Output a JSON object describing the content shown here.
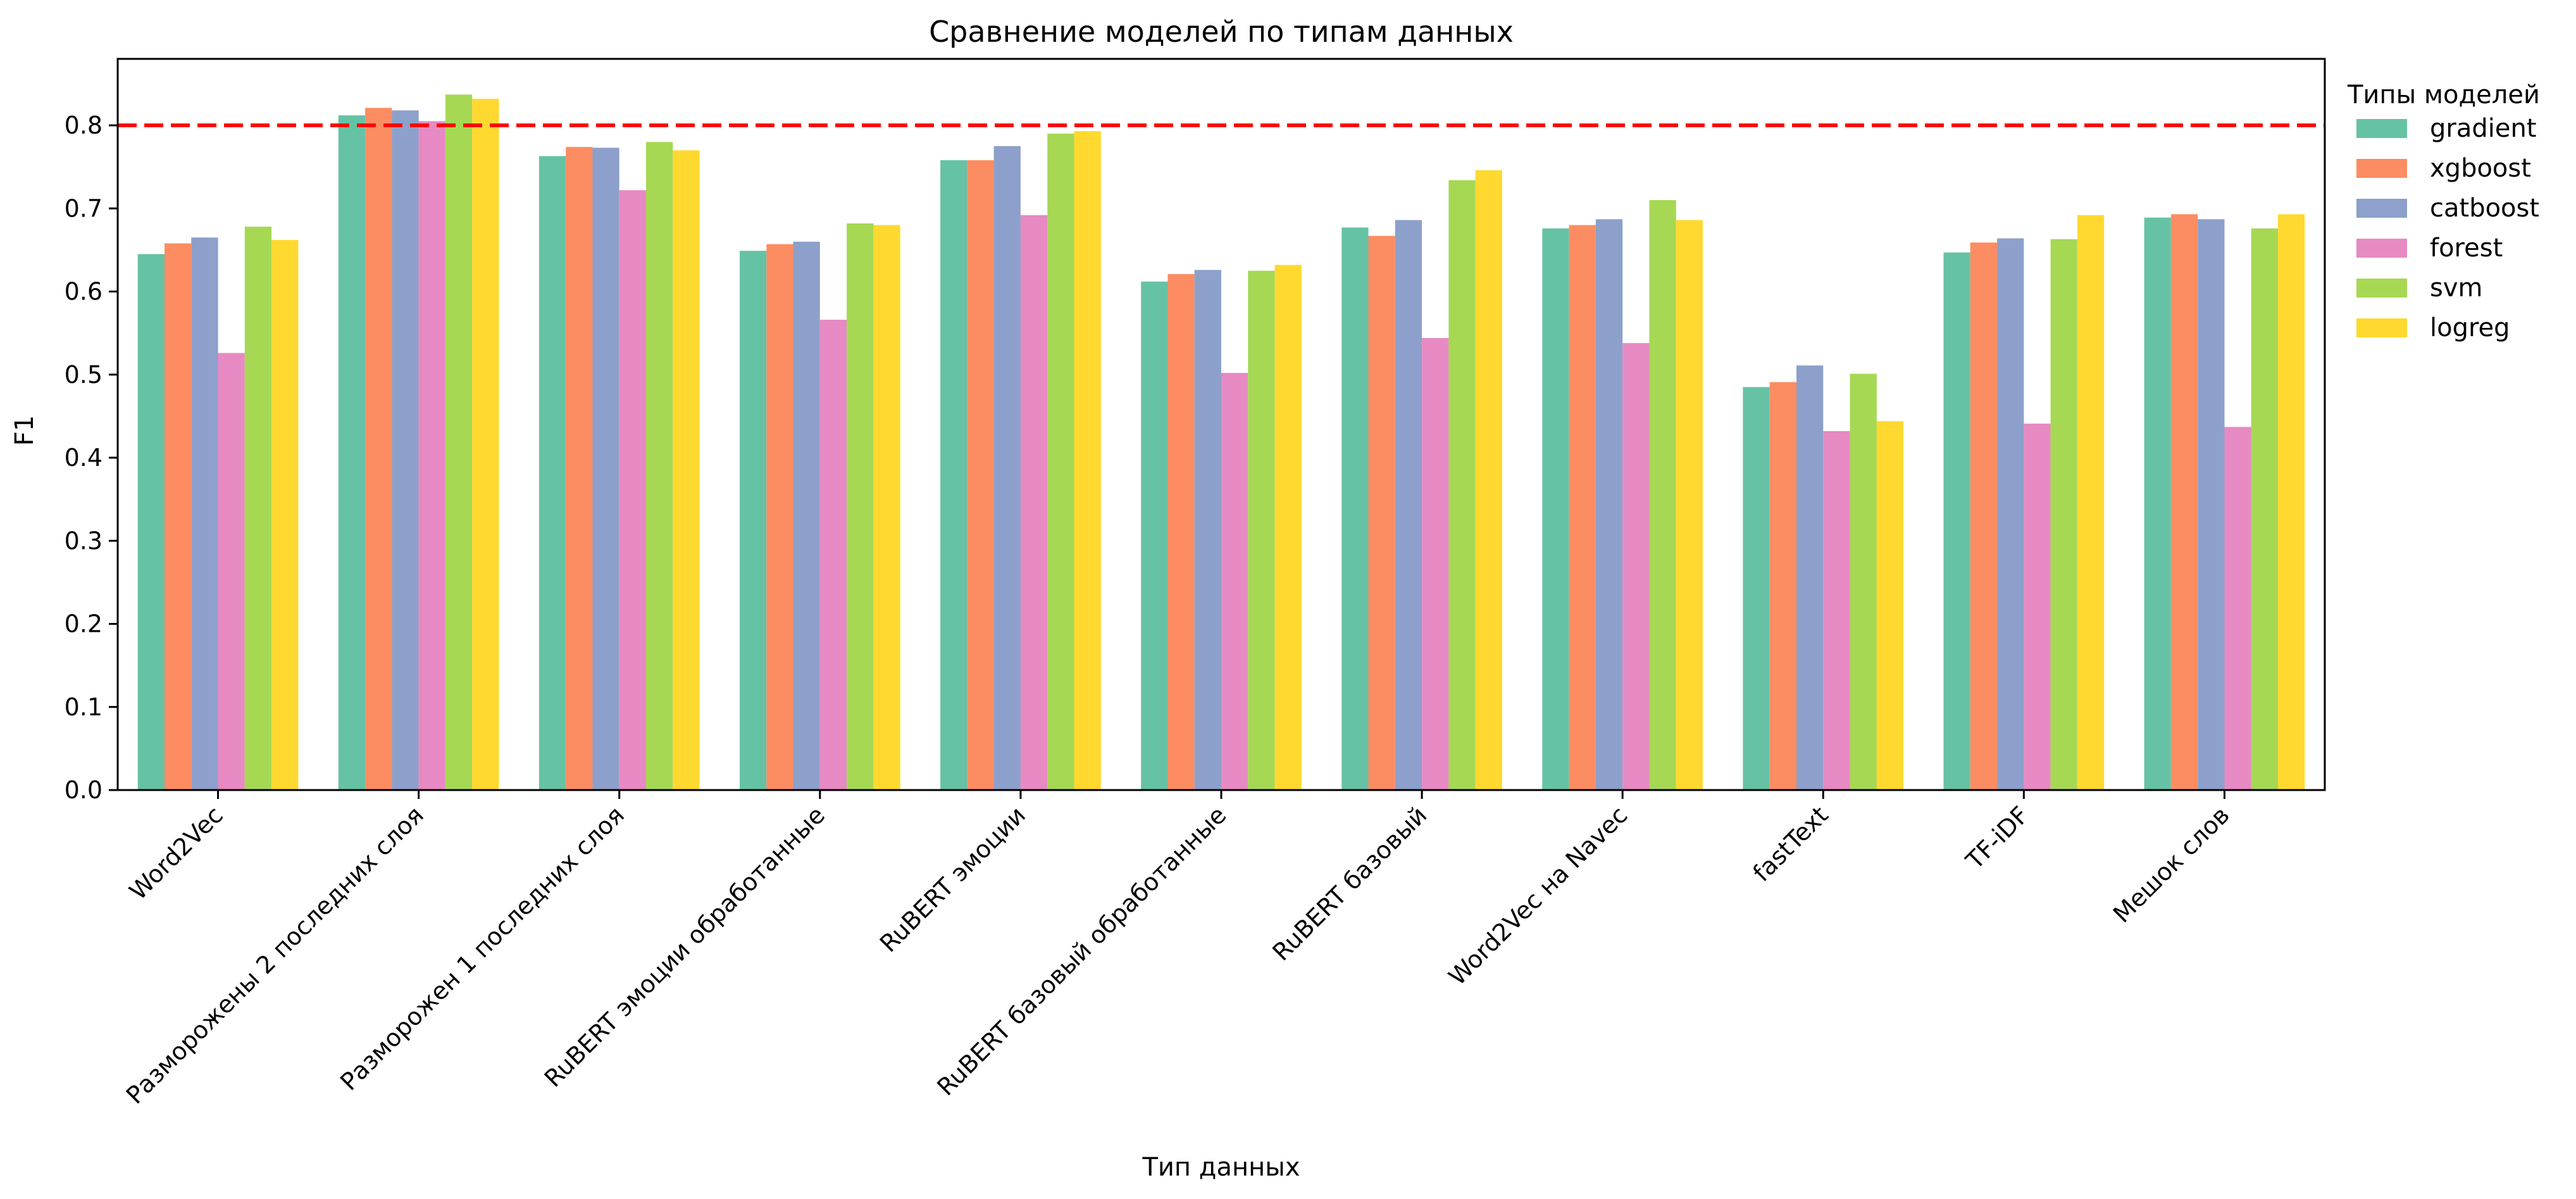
{
  "chart_data": {
    "type": "bar",
    "title": "Сравнение моделей по типам данных",
    "xlabel": "Тип данных",
    "ylabel": "F1",
    "ylim": [
      0,
      0.88
    ],
    "yticks": [
      "0.0",
      "0.1",
      "0.2",
      "0.3",
      "0.4",
      "0.5",
      "0.6",
      "0.7",
      "0.8"
    ],
    "threshold": 0.8,
    "threshold_color": "#ff0000",
    "legend_title": "Типы моделей",
    "legend_position": "outside-right",
    "grid": false,
    "categories": [
      "Word2Vec",
      "Разморожены 2 последних слоя",
      "Разморожен 1 последних слоя",
      "RuBERT эмоции обработанные",
      "RuBERT эмоции",
      "RuBERT базовый обработанные",
      "RuBERT базовый",
      "Word2Vec на Navec",
      "fastText",
      "TF-iDF",
      "Мешок слов"
    ],
    "series": [
      {
        "name": "gradient",
        "color": "#66c2a5",
        "values": [
          0.645,
          0.812,
          0.763,
          0.649,
          0.758,
          0.612,
          0.677,
          0.676,
          0.485,
          0.647,
          0.689
        ]
      },
      {
        "name": "xgboost",
        "color": "#fc8d62",
        "values": [
          0.658,
          0.821,
          0.774,
          0.657,
          0.758,
          0.621,
          0.667,
          0.68,
          0.491,
          0.659,
          0.693
        ]
      },
      {
        "name": "catboost",
        "color": "#8da0cb",
        "values": [
          0.665,
          0.818,
          0.773,
          0.66,
          0.775,
          0.626,
          0.686,
          0.687,
          0.511,
          0.664,
          0.687
        ]
      },
      {
        "name": "forest",
        "color": "#e78ac3",
        "values": [
          0.526,
          0.805,
          0.722,
          0.566,
          0.692,
          0.502,
          0.544,
          0.538,
          0.432,
          0.441,
          0.437
        ]
      },
      {
        "name": "svm",
        "color": "#a6d854",
        "values": [
          0.678,
          0.837,
          0.78,
          0.682,
          0.79,
          0.625,
          0.734,
          0.71,
          0.501,
          0.663,
          0.676
        ]
      },
      {
        "name": "logreg",
        "color": "#ffd92f",
        "values": [
          0.662,
          0.832,
          0.77,
          0.68,
          0.793,
          0.632,
          0.746,
          0.686,
          0.444,
          0.692,
          0.693
        ]
      }
    ]
  }
}
